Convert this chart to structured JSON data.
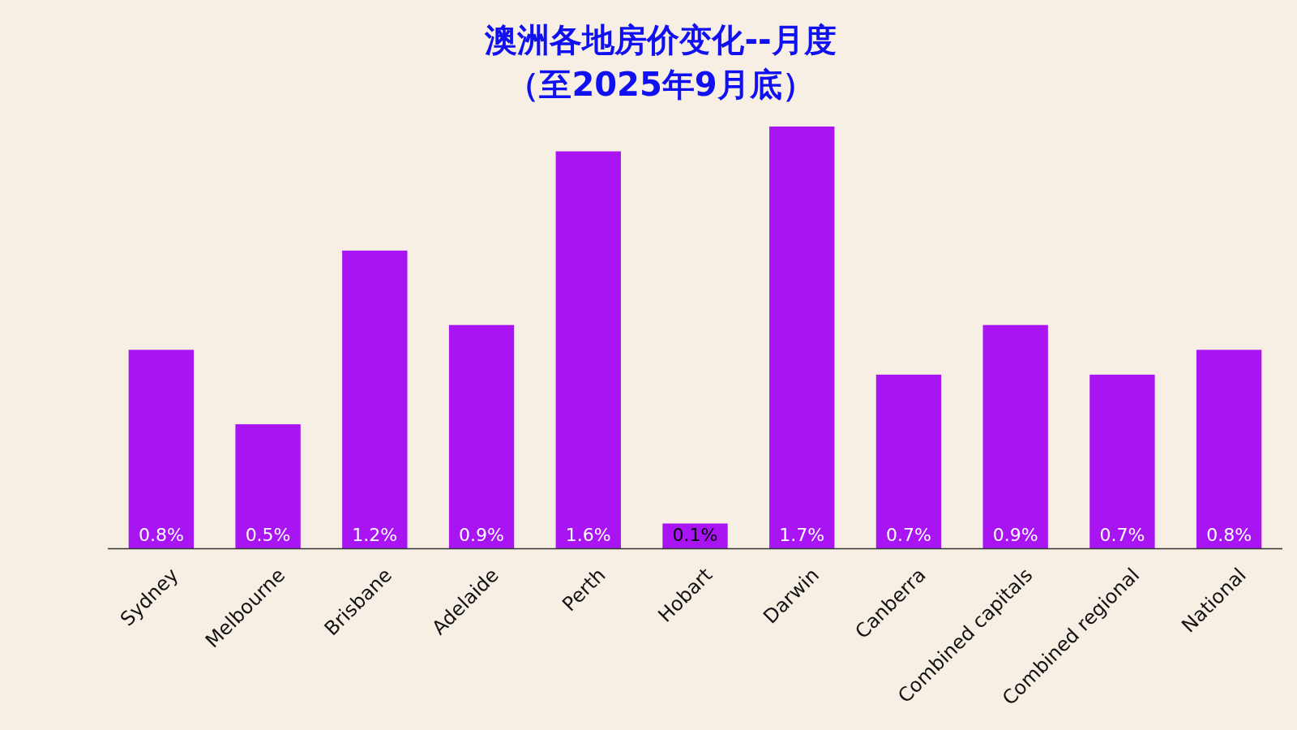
{
  "chart_data": {
    "type": "bar",
    "title": "澳洲各地房价变化--月度",
    "subtitle": "（至2025年9月底）",
    "categories": [
      "Sydney",
      "Melbourne",
      "Brisbane",
      "Adelaide",
      "Perth",
      "Hobart",
      "Darwin",
      "Canberra",
      "Combined capitals",
      "Combined regional",
      "National"
    ],
    "values": [
      0.8,
      0.5,
      1.2,
      0.9,
      1.6,
      0.1,
      1.7,
      0.7,
      0.9,
      0.7,
      0.8
    ],
    "value_labels": [
      "0.8%",
      "0.5%",
      "1.2%",
      "0.9%",
      "1.6%",
      "0.1%",
      "1.7%",
      "0.7%",
      "0.9%",
      "0.7%",
      "0.8%"
    ],
    "color": "#a914f2"
  }
}
